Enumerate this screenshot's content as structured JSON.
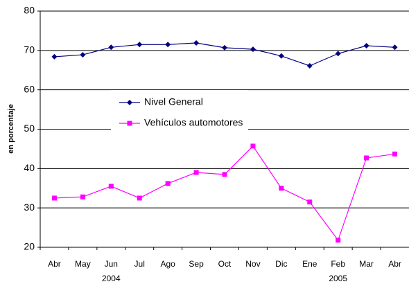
{
  "chart_data": {
    "type": "line",
    "y_label": "en porcentaje",
    "categories": [
      "Abr",
      "May",
      "Jun",
      "Jul",
      "Ago",
      "Sep",
      "Oct",
      "Nov",
      "Dic",
      "Ene",
      "Feb",
      "Mar",
      "Abr"
    ],
    "category_sublabels": [
      null,
      null,
      "2004",
      null,
      null,
      null,
      null,
      null,
      null,
      null,
      "2005",
      null,
      null
    ],
    "series": [
      {
        "name": "Nivel General",
        "color": "#000080",
        "marker": "diamond",
        "values": [
          68.4,
          68.9,
          70.8,
          71.5,
          71.5,
          71.9,
          70.7,
          70.3,
          68.6,
          66.1,
          69.2,
          71.2,
          70.8
        ]
      },
      {
        "name": "Vehículos automotores",
        "color": "#ff00ff",
        "marker": "square",
        "values": [
          32.5,
          32.8,
          35.5,
          32.5,
          36.2,
          39.0,
          38.5,
          45.7,
          35.0,
          31.5,
          21.8,
          42.7,
          43.7
        ]
      }
    ],
    "ylim": [
      20,
      80
    ],
    "yticks": [
      20,
      30,
      40,
      50,
      60,
      70,
      80
    ],
    "grid": true,
    "legend": "center-left"
  }
}
